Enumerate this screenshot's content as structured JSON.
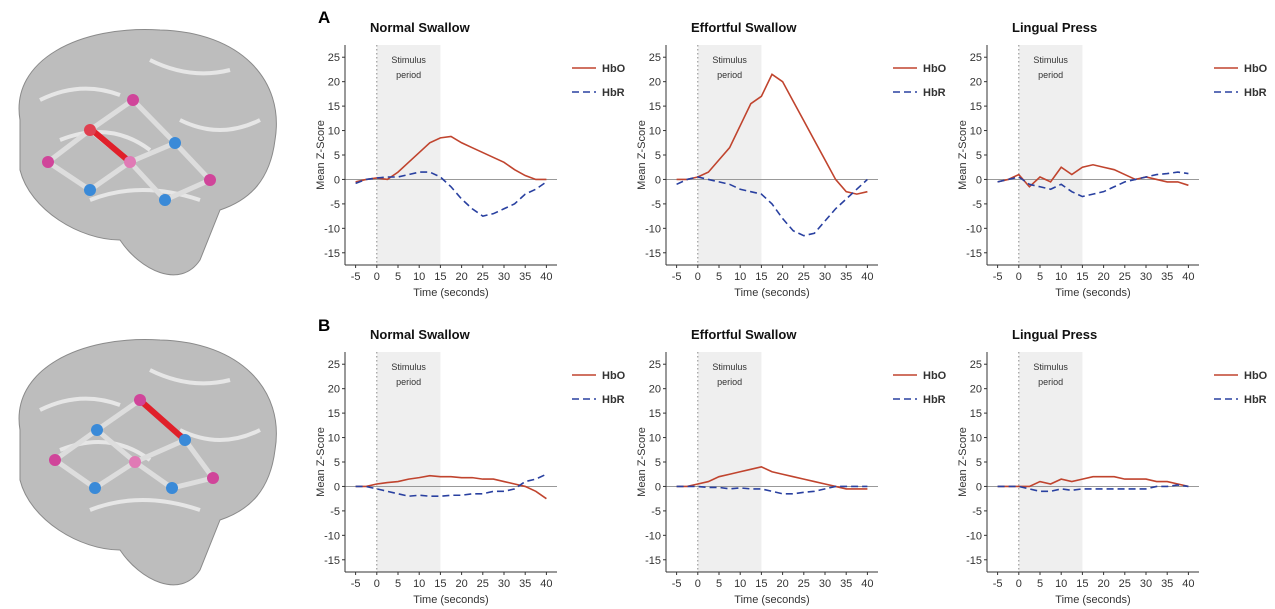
{
  "panel_labels": [
    "A",
    "B"
  ],
  "chart_data": [
    {
      "type": "line",
      "title": "Normal Swallow",
      "xlabel": "Time (seconds)",
      "ylabel": "Mean Z-Score",
      "annotation": "Stimulus period",
      "shade": [
        0,
        15
      ],
      "vline": 0,
      "hline": 0,
      "legend": "upper right",
      "x": [
        -5,
        -2.5,
        0,
        2.5,
        5,
        7.5,
        10,
        12.5,
        15,
        17.5,
        20,
        22.5,
        25,
        27.5,
        30,
        32.5,
        35,
        37.5,
        40
      ],
      "series": [
        {
          "name": "HbO",
          "color": "#c0442e",
          "linestyle": "solid",
          "values": [
            -0.5,
            0,
            0.3,
            0,
            1.5,
            3.5,
            5.5,
            7.5,
            8.5,
            8.8,
            7.5,
            6.5,
            5.5,
            4.5,
            3.5,
            2,
            0.8,
            0,
            0
          ]
        },
        {
          "name": "HbR",
          "color": "#2940a0",
          "linestyle": "dashed",
          "values": [
            -0.8,
            0,
            0.3,
            0.5,
            0.5,
            1,
            1.5,
            1.5,
            0.5,
            -1.5,
            -4,
            -6,
            -7.5,
            -7,
            -6,
            -5,
            -3,
            -2,
            -0.5
          ]
        }
      ],
      "xlim": [
        -7.5,
        42.5
      ],
      "xticks": [
        -5,
        0,
        5,
        10,
        15,
        20,
        25,
        30,
        35,
        40
      ],
      "ylim": [
        -17.5,
        27.5
      ],
      "yticks": [
        -15,
        -10,
        -5,
        0,
        5,
        10,
        15,
        20,
        25
      ]
    },
    {
      "type": "line",
      "title": "Effortful Swallow",
      "xlabel": "Time (seconds)",
      "ylabel": "Mean Z-Score",
      "annotation": "Stimulus period",
      "shade": [
        0,
        15
      ],
      "vline": 0,
      "hline": 0,
      "legend": "upper right",
      "x": [
        -5,
        -2.5,
        0,
        2.5,
        5,
        7.5,
        10,
        12.5,
        15,
        17.5,
        20,
        22.5,
        25,
        27.5,
        30,
        32.5,
        35,
        37.5,
        40
      ],
      "series": [
        {
          "name": "HbO",
          "color": "#c0442e",
          "linestyle": "solid",
          "values": [
            0,
            0,
            0.5,
            1.5,
            4,
            6.5,
            11,
            15.5,
            17,
            21.5,
            20,
            16,
            12,
            8,
            4,
            0,
            -2.5,
            -3,
            -2.5
          ]
        },
        {
          "name": "HbR",
          "color": "#2940a0",
          "linestyle": "dashed",
          "values": [
            -1,
            0,
            0.5,
            0,
            -0.5,
            -1,
            -2,
            -2.5,
            -3,
            -5,
            -8,
            -10.5,
            -11.5,
            -11,
            -8.5,
            -6,
            -4,
            -2,
            0
          ]
        }
      ],
      "xlim": [
        -7.5,
        42.5
      ],
      "xticks": [
        -5,
        0,
        5,
        10,
        15,
        20,
        25,
        30,
        35,
        40
      ],
      "ylim": [
        -17.5,
        27.5
      ],
      "yticks": [
        -15,
        -10,
        -5,
        0,
        5,
        10,
        15,
        20,
        25
      ]
    },
    {
      "type": "line",
      "title": "Lingual Press",
      "xlabel": "Time (seconds)",
      "ylabel": "Mean Z-Score",
      "annotation": "Stimulus period",
      "shade": [
        0,
        15
      ],
      "vline": 0,
      "hline": 0,
      "legend": "upper right",
      "x": [
        -5,
        -2.5,
        0,
        2.5,
        5,
        7.5,
        10,
        12.5,
        15,
        17.5,
        20,
        22.5,
        25,
        27.5,
        30,
        32.5,
        35,
        37.5,
        40
      ],
      "series": [
        {
          "name": "HbO",
          "color": "#c0442e",
          "linestyle": "solid",
          "values": [
            -0.5,
            0,
            1,
            -1.5,
            0.5,
            -0.5,
            2.5,
            1,
            2.5,
            3,
            2.5,
            2,
            1,
            0,
            0.5,
            0,
            -0.5,
            -0.5,
            -1.2
          ]
        },
        {
          "name": "HbR",
          "color": "#2940a0",
          "linestyle": "dashed",
          "values": [
            -0.5,
            0,
            0.5,
            -1,
            -1.5,
            -2,
            -1,
            -2.5,
            -3.5,
            -3,
            -2.5,
            -1.5,
            -0.5,
            0,
            0.5,
            1,
            1.2,
            1.5,
            1.2
          ]
        }
      ],
      "xlim": [
        -7.5,
        42.5
      ],
      "xticks": [
        -5,
        0,
        5,
        10,
        15,
        20,
        25,
        30,
        35,
        40
      ],
      "ylim": [
        -17.5,
        27.5
      ],
      "yticks": [
        -15,
        -10,
        -5,
        0,
        5,
        10,
        15,
        20,
        25
      ]
    },
    {
      "type": "line",
      "title": "Normal Swallow",
      "xlabel": "Time (seconds)",
      "ylabel": "Mean Z-Score",
      "annotation": "Stimulus period",
      "shade": [
        0,
        15
      ],
      "vline": 0,
      "hline": 0,
      "legend": "upper right",
      "x": [
        -5,
        -2.5,
        0,
        2.5,
        5,
        7.5,
        10,
        12.5,
        15,
        17.5,
        20,
        22.5,
        25,
        27.5,
        30,
        32.5,
        35,
        37.5,
        40
      ],
      "series": [
        {
          "name": "HbO",
          "color": "#c0442e",
          "linestyle": "solid",
          "values": [
            0,
            0,
            0.5,
            0.8,
            1,
            1.5,
            1.8,
            2.2,
            2,
            2,
            1.8,
            1.8,
            1.5,
            1.5,
            1,
            0.5,
            0,
            -1,
            -2.5
          ]
        },
        {
          "name": "HbR",
          "color": "#2940a0",
          "linestyle": "dashed",
          "values": [
            0,
            0,
            -0.5,
            -1,
            -1.5,
            -2,
            -1.8,
            -2,
            -2,
            -1.8,
            -1.8,
            -1.5,
            -1.5,
            -1,
            -1,
            -0.5,
            1,
            1.5,
            2.5
          ]
        }
      ],
      "xlim": [
        -7.5,
        42.5
      ],
      "xticks": [
        -5,
        0,
        5,
        10,
        15,
        20,
        25,
        30,
        35,
        40
      ],
      "ylim": [
        -17.5,
        27.5
      ],
      "yticks": [
        -15,
        -10,
        -5,
        0,
        5,
        10,
        15,
        20,
        25
      ]
    },
    {
      "type": "line",
      "title": "Effortful Swallow",
      "xlabel": "Time (seconds)",
      "ylabel": "Mean Z-Score",
      "annotation": "Stimulus period",
      "shade": [
        0,
        15
      ],
      "vline": 0,
      "hline": 0,
      "legend": "upper right",
      "x": [
        -5,
        -2.5,
        0,
        2.5,
        5,
        7.5,
        10,
        12.5,
        15,
        17.5,
        20,
        22.5,
        25,
        27.5,
        30,
        32.5,
        35,
        37.5,
        40
      ],
      "series": [
        {
          "name": "HbO",
          "color": "#c0442e",
          "linestyle": "solid",
          "values": [
            0,
            0,
            0.5,
            1,
            2,
            2.5,
            3,
            3.5,
            4,
            3,
            2.5,
            2,
            1.5,
            1,
            0.5,
            0,
            -0.5,
            -0.5,
            -0.5
          ]
        },
        {
          "name": "HbR",
          "color": "#2940a0",
          "linestyle": "dashed",
          "values": [
            0,
            0,
            0,
            -0.2,
            -0.2,
            -0.5,
            -0.3,
            -0.5,
            -0.5,
            -1,
            -1.5,
            -1.5,
            -1.2,
            -1,
            -0.5,
            0,
            0,
            0,
            0
          ]
        }
      ],
      "xlim": [
        -7.5,
        42.5
      ],
      "xticks": [
        -5,
        0,
        5,
        10,
        15,
        20,
        25,
        30,
        35,
        40
      ],
      "ylim": [
        -17.5,
        27.5
      ],
      "yticks": [
        -15,
        -10,
        -5,
        0,
        5,
        10,
        15,
        20,
        25
      ]
    },
    {
      "type": "line",
      "title": "Lingual Press",
      "xlabel": "Time (seconds)",
      "ylabel": "Mean Z-Score",
      "annotation": "Stimulus period",
      "shade": [
        0,
        15
      ],
      "vline": 0,
      "hline": 0,
      "legend": "upper right",
      "x": [
        -5,
        -2.5,
        0,
        2.5,
        5,
        7.5,
        10,
        12.5,
        15,
        17.5,
        20,
        22.5,
        25,
        27.5,
        30,
        32.5,
        35,
        37.5,
        40
      ],
      "series": [
        {
          "name": "HbO",
          "color": "#c0442e",
          "linestyle": "solid",
          "values": [
            0,
            0,
            0,
            0,
            1,
            0.5,
            1.5,
            1,
            1.5,
            2,
            2,
            2,
            1.5,
            1.5,
            1.5,
            1,
            1,
            0.5,
            0
          ]
        },
        {
          "name": "HbR",
          "color": "#2940a0",
          "linestyle": "dashed",
          "values": [
            0,
            0,
            0,
            -0.5,
            -1,
            -1,
            -0.5,
            -0.8,
            -0.5,
            -0.5,
            -0.5,
            -0.5,
            -0.5,
            -0.5,
            -0.5,
            0,
            0,
            0.3,
            0
          ]
        }
      ],
      "xlim": [
        -7.5,
        42.5
      ],
      "xticks": [
        -5,
        0,
        5,
        10,
        15,
        20,
        25,
        30,
        35,
        40
      ],
      "ylim": [
        -17.5,
        27.5
      ],
      "yticks": [
        -15,
        -10,
        -5,
        0,
        5,
        10,
        15,
        20,
        25
      ]
    }
  ]
}
